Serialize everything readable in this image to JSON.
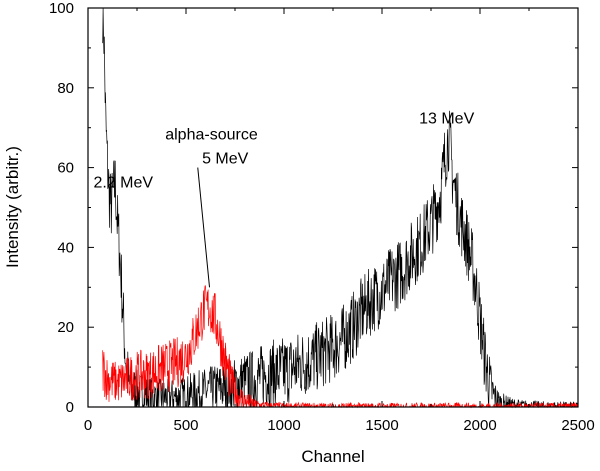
{
  "chart_data": {
    "type": "line",
    "title": "",
    "xlabel": "Channel",
    "ylabel": "Intensity (arbitr.)",
    "xlim": [
      0,
      2500
    ],
    "ylim": [
      0,
      100
    ],
    "x_ticks": [
      0,
      500,
      1000,
      1500,
      2000,
      2500
    ],
    "y_ticks": [
      0,
      20,
      40,
      60,
      80,
      100
    ],
    "grid": false,
    "series": [
      {
        "color": "#000000",
        "x": [
          75,
          80,
          90,
          100,
          110,
          120,
          130,
          140,
          150,
          160,
          170,
          180,
          190,
          200,
          210,
          220,
          240,
          260,
          300,
          350,
          400,
          450,
          500,
          550,
          600,
          650,
          700,
          750,
          800,
          850,
          900,
          950,
          1000,
          1050,
          1100,
          1150,
          1200,
          1250,
          1300,
          1350,
          1400,
          1450,
          1500,
          1550,
          1600,
          1650,
          1700,
          1750,
          1780,
          1800,
          1820,
          1840,
          1850,
          1860,
          1880,
          1900,
          1920,
          1940,
          1960,
          1980,
          2000,
          2020,
          2040,
          2060,
          2080,
          2100,
          2150,
          2200,
          2300,
          2400,
          2500
        ],
        "values": [
          100,
          96,
          72,
          60,
          52,
          50,
          54,
          56,
          46,
          40,
          32,
          22,
          14,
          8,
          6,
          5,
          4,
          3.5,
          3,
          2.5,
          2.5,
          2.5,
          3,
          3.5,
          4,
          4.5,
          5,
          5.5,
          6.5,
          7,
          8,
          8.5,
          9,
          10,
          11,
          12,
          13.5,
          15,
          17,
          20,
          24,
          27,
          29,
          32,
          34,
          38,
          41,
          46,
          50,
          54,
          62,
          68,
          64,
          58,
          52,
          47,
          44,
          40,
          36,
          30,
          22,
          14,
          8,
          4,
          2,
          1,
          0.5,
          0.3,
          0.2,
          0.1,
          0
        ],
        "noise": 4
      },
      {
        "color": "#ff0000",
        "x": [
          75,
          100,
          150,
          200,
          250,
          300,
          350,
          400,
          450,
          500,
          530,
          560,
          590,
          620,
          650,
          680,
          700,
          730,
          760,
          800,
          850,
          900,
          950,
          1000,
          1100,
          1200,
          1400,
          1600,
          1800,
          2000,
          2200,
          2500
        ],
        "values": [
          10,
          7,
          6,
          7,
          8,
          8,
          9,
          10,
          11,
          13,
          16,
          20,
          24,
          25,
          22,
          16,
          11,
          6,
          3,
          1.5,
          0.5,
          0.3,
          0.2,
          0.2,
          0.1,
          0.1,
          0.1,
          0.1,
          0.1,
          0.1,
          0.1,
          0.1
        ],
        "noise": 3
      }
    ],
    "annotations": [
      {
        "text": "2.2 MeV",
        "x": 180,
        "y": 55
      },
      {
        "text": "alpha-source",
        "x": 630,
        "y": 67
      },
      {
        "text": "5 MeV",
        "x": 700,
        "y": 61
      },
      {
        "text": "13 MeV",
        "x": 1830,
        "y": 71
      }
    ],
    "arrow": {
      "from": [
        560,
        60
      ],
      "to": [
        620,
        30
      ]
    }
  }
}
